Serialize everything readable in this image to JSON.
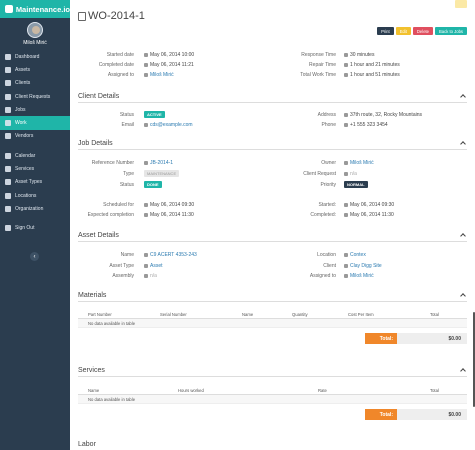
{
  "brand": "Maintenance.io",
  "user": {
    "name": "Miloš Mirić"
  },
  "nav": {
    "group1": [
      {
        "label": "Dashboard",
        "icon": "dashboard-icon"
      },
      {
        "label": "Assets",
        "icon": "assets-icon"
      },
      {
        "label": "Clients",
        "icon": "clients-icon"
      },
      {
        "label": "Client Requests",
        "icon": "requests-icon"
      },
      {
        "label": "Jobs",
        "icon": "jobs-icon"
      },
      {
        "label": "Work",
        "icon": "work-icon"
      },
      {
        "label": "Vendors",
        "icon": "vendors-icon"
      }
    ],
    "group2": [
      {
        "label": "Calendar",
        "icon": "calendar-icon"
      },
      {
        "label": "Services",
        "icon": "services-icon"
      },
      {
        "label": "Asset Types",
        "icon": "asset-types-icon"
      },
      {
        "label": "Locations",
        "icon": "locations-icon"
      },
      {
        "label": "Organization",
        "icon": "organization-icon"
      }
    ],
    "signout": {
      "label": "Sign Out",
      "icon": "signout-icon"
    },
    "active": "Work"
  },
  "page": {
    "title": "WO-2014-1",
    "buttons": {
      "print": "Print",
      "edit": "Edit",
      "delete": "Delete",
      "back": "Back to Jobs"
    }
  },
  "summary": {
    "started_label": "Started date",
    "started": "May 06, 2014 10:00",
    "completed_label": "Completed date",
    "completed": "May 06, 2014 11:21",
    "assigned_label": "Assigned to",
    "assigned": "Miloš Mirić",
    "response_label": "Response Time",
    "response": "30 minutes",
    "repair_label": "Repair Time",
    "repair": "1 hour and 21 minutes",
    "total_label": "Total Work Time",
    "total": "1 hour and 51 minutes"
  },
  "client": {
    "heading": "Client Details",
    "status_label": "Status",
    "status": "ACTIVE",
    "email_label": "Email",
    "email": "cds@example.com",
    "address_label": "Address",
    "address": "37th route, 32, Rocky Mountains",
    "phone_label": "Phone",
    "phone": "+1 555 323 3454"
  },
  "job": {
    "heading": "Job Details",
    "ref_label": "Reference Number",
    "ref": "JB-2014-1",
    "type_label": "Type",
    "type": "MAINTENANCE",
    "status_label": "Status",
    "status": "DONE",
    "owner_label": "Owner",
    "owner": "Miloš Mirić",
    "request_label": "Client Request",
    "request": "n/a",
    "priority_label": "Priority",
    "priority": "NORMAL",
    "sched_label": "Scheduled for",
    "sched": "May 06, 2014 09:30",
    "expected_label": "Expected completion",
    "expected": "May 06, 2014 11:30",
    "started_label": "Started:",
    "started": "May 06, 2014 09:30",
    "completed_label": "Completed:",
    "completed": "May 06, 2014 11:30"
  },
  "asset": {
    "heading": "Asset Details",
    "name_label": "Name",
    "name": "C9 ACERT 4353-243",
    "type_label": "Asset Type",
    "type": "Asset",
    "assembly_label": "Assembly",
    "assembly": "n/a",
    "location_label": "Location",
    "location": "Contex",
    "client_label": "Client",
    "client": "Clay Digg Site",
    "assigned_label": "Assigned to",
    "assigned": "Miloš Mirić"
  },
  "materials": {
    "heading": "Materials",
    "columns": [
      "Part Number",
      "Serial Number",
      "Name",
      "Quantity",
      "Cost Per Item",
      "Total"
    ],
    "empty": "No data available in table",
    "total_label": "Total:",
    "total": "$0.00"
  },
  "services": {
    "heading": "Services",
    "columns": [
      "Name",
      "Hours worked",
      "Rate",
      "Total"
    ],
    "empty": "No data available in table",
    "total_label": "Total:",
    "total": "$0.00"
  },
  "labor": {
    "heading": "Labor"
  }
}
